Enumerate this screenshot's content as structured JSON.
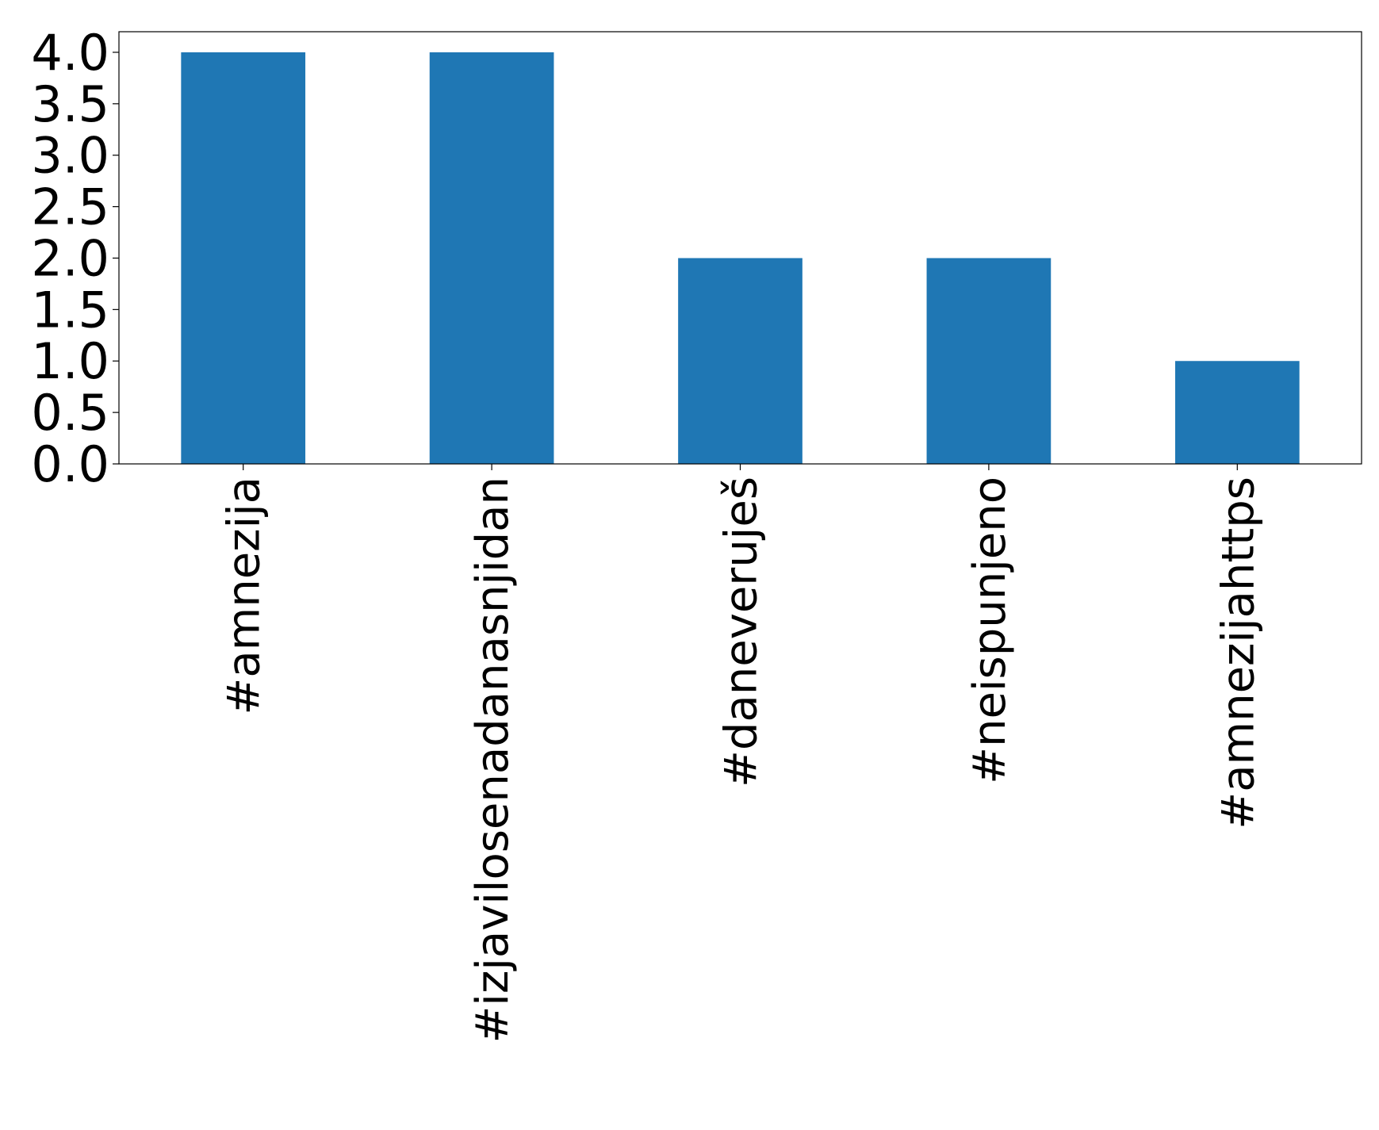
{
  "chart_data": {
    "type": "bar",
    "categories": [
      "#amnezija",
      "#izjavilosenadanasnjidan",
      "#daneveruješ",
      "#neispunjeno",
      "#amnezijahttps"
    ],
    "values": [
      4,
      4,
      2,
      2,
      1
    ],
    "color": "#1f77b4",
    "ylim": [
      0,
      4.2
    ],
    "yticks": [
      {
        "value": 0,
        "label": "0.0"
      },
      {
        "value": 0.5,
        "label": "0.5"
      },
      {
        "value": 1,
        "label": "1.0"
      },
      {
        "value": 1.5,
        "label": "1.5"
      },
      {
        "value": 2,
        "label": "2.0"
      },
      {
        "value": 2.5,
        "label": "2.5"
      },
      {
        "value": 3,
        "label": "3.0"
      },
      {
        "value": 3.5,
        "label": "3.5"
      },
      {
        "value": 4,
        "label": "4.0"
      }
    ],
    "grid": false
  }
}
